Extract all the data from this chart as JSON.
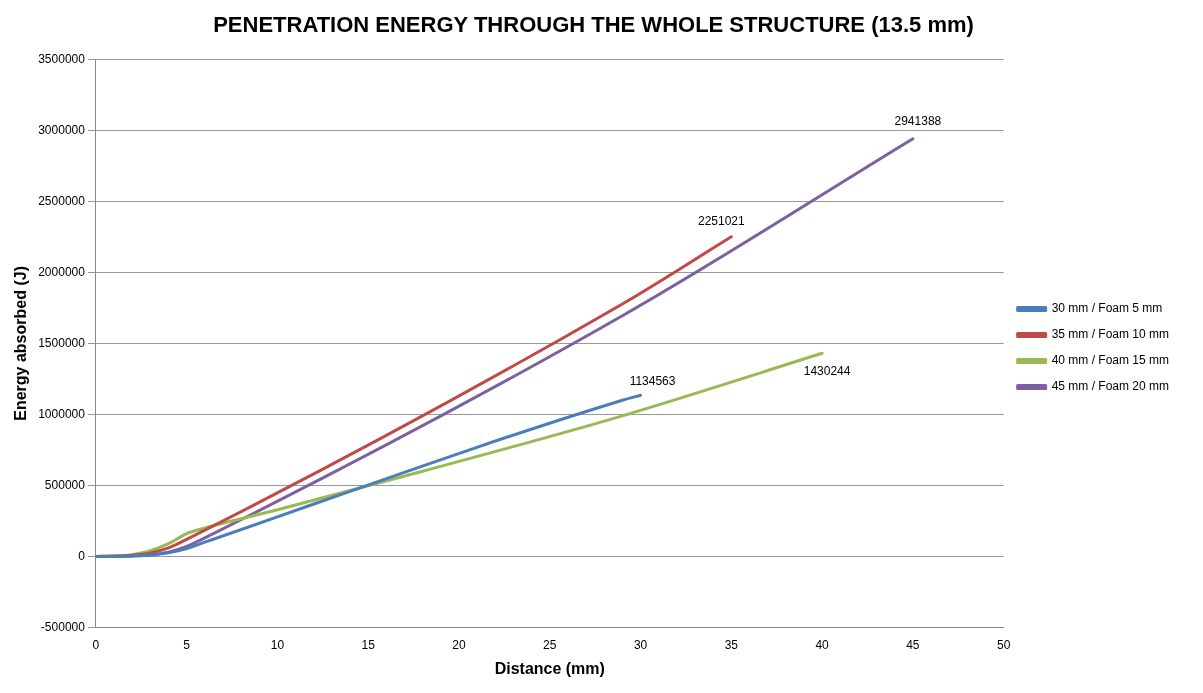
{
  "chart_data": {
    "type": "line",
    "title": "PENETRATION ENERGY THROUGH THE WHOLE STRUCTURE (13.5 mm)",
    "xlabel": "Distance (mm)",
    "ylabel": "Energy absorbed (J)",
    "xlim": [
      0,
      50
    ],
    "xticks": [
      0,
      5,
      10,
      15,
      20,
      25,
      30,
      35,
      40,
      45,
      50
    ],
    "ylim": [
      -500000,
      3500000
    ],
    "yticks": [
      -500000,
      0,
      500000,
      1000000,
      1500000,
      2000000,
      2500000,
      3000000,
      3500000
    ],
    "grid": "y",
    "legend": "right",
    "marker": "none",
    "line_style": "solid",
    "series": [
      {
        "name": "30 mm / Foam 5 mm",
        "color": "#4a7ebb",
        "x": [
          0,
          1,
          2,
          3,
          4,
          5,
          6,
          29,
          30
        ],
        "values": [
          0,
          0,
          3000,
          10000,
          25000,
          55000,
          100000,
          1100000,
          1134563
        ]
      },
      {
        "name": "35 mm / Foam 10 mm",
        "color": "#be4b48",
        "x": [
          0,
          1,
          2,
          3,
          4,
          5,
          29,
          35
        ],
        "values": [
          0,
          2000,
          8000,
          25000,
          60000,
          120000,
          1778000,
          2251021
        ]
      },
      {
        "name": "40 mm / Foam 15 mm",
        "color": "#98b954",
        "x": [
          0,
          1,
          2,
          3,
          4,
          5,
          6,
          10,
          18,
          29,
          40
        ],
        "values": [
          0,
          3000,
          12000,
          40000,
          90000,
          160000,
          200000,
          328000,
          600000,
          990000,
          1430244
        ]
      },
      {
        "name": "45 mm / Foam 20 mm",
        "color": "#7d60a0",
        "x": [
          0,
          1,
          2,
          3,
          4,
          5,
          6,
          29,
          45
        ],
        "values": [
          0,
          0,
          3000,
          10000,
          30000,
          70000,
          130000,
          1695000,
          2941388
        ]
      }
    ],
    "annotations": [
      {
        "text": "1134563",
        "x": 30,
        "y": 1134563
      },
      {
        "text": "2251021",
        "x": 35,
        "y": 2251021
      },
      {
        "text": "1430244",
        "x": 40,
        "y": 1430244
      },
      {
        "text": "2941388",
        "x": 45,
        "y": 2941388
      }
    ]
  }
}
